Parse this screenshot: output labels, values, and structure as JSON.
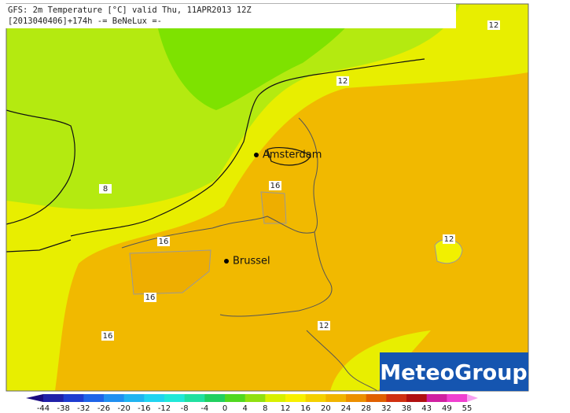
{
  "header": {
    "line1": "GFS: 2m Temperature [°C] valid Thu, 11APR2013 12Z",
    "line2": "[2013040406]+174h -= BeNeLux =-"
  },
  "cities": [
    {
      "label": "Amsterdam"
    },
    {
      "label": "Brussel"
    }
  ],
  "contour_labels": [
    "12",
    "12",
    "8",
    "16",
    "16",
    "12",
    "16",
    "16",
    "12"
  ],
  "colorbar": {
    "ticks": [
      -44,
      -38,
      -32,
      -26,
      -20,
      -16,
      -12,
      -8,
      -4,
      0,
      4,
      8,
      12,
      16,
      20,
      24,
      28,
      32,
      38,
      43,
      49,
      55
    ],
    "colors": [
      "#1a0a80",
      "#2020a8",
      "#1e3cd0",
      "#1e64e8",
      "#2090f0",
      "#20b4f0",
      "#20d4f0",
      "#20e8d8",
      "#20e0a0",
      "#20d060",
      "#50d820",
      "#90e010",
      "#d8f000",
      "#f8f000",
      "#f4d000",
      "#f0b400",
      "#ec9000",
      "#e06000",
      "#d03010",
      "#b01010",
      "#d020a0",
      "#f040d0",
      "#f8a0f0"
    ]
  },
  "logo": "MeteoGroup"
}
